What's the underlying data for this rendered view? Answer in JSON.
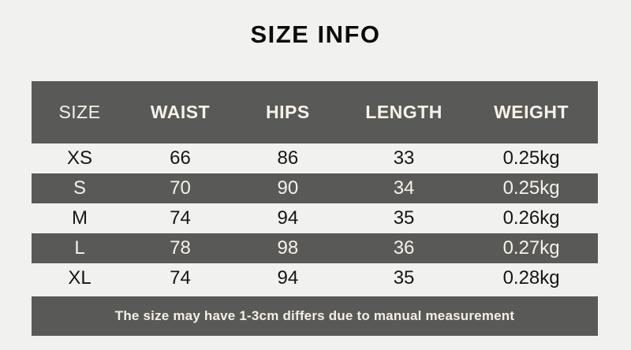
{
  "page": {
    "title": "SIZE INFO",
    "background_color": "#f1f1f0",
    "bar_color": "#595957",
    "light_text_color": "#f6f2ea",
    "dark_text_color": "#161616"
  },
  "table": {
    "columns": [
      "SIZE",
      "WAIST",
      "HIPS",
      "LENGTH",
      "WEIGHT"
    ],
    "rows": [
      {
        "variant": "light",
        "cells": [
          "XS",
          "66",
          "86",
          "33",
          "0.25kg"
        ]
      },
      {
        "variant": "dark",
        "cells": [
          "S",
          "70",
          "90",
          "34",
          "0.25kg"
        ]
      },
      {
        "variant": "light",
        "cells": [
          "M",
          "74",
          "94",
          "35",
          "0.26kg"
        ]
      },
      {
        "variant": "dark",
        "cells": [
          "L",
          "78",
          "98",
          "36",
          "0.27kg"
        ]
      },
      {
        "variant": "light",
        "cells": [
          "XL",
          "74",
          "94",
          "35",
          "0.28kg"
        ]
      }
    ]
  },
  "footer": {
    "note": "The size may have 1-3cm differs due to manual measurement"
  }
}
